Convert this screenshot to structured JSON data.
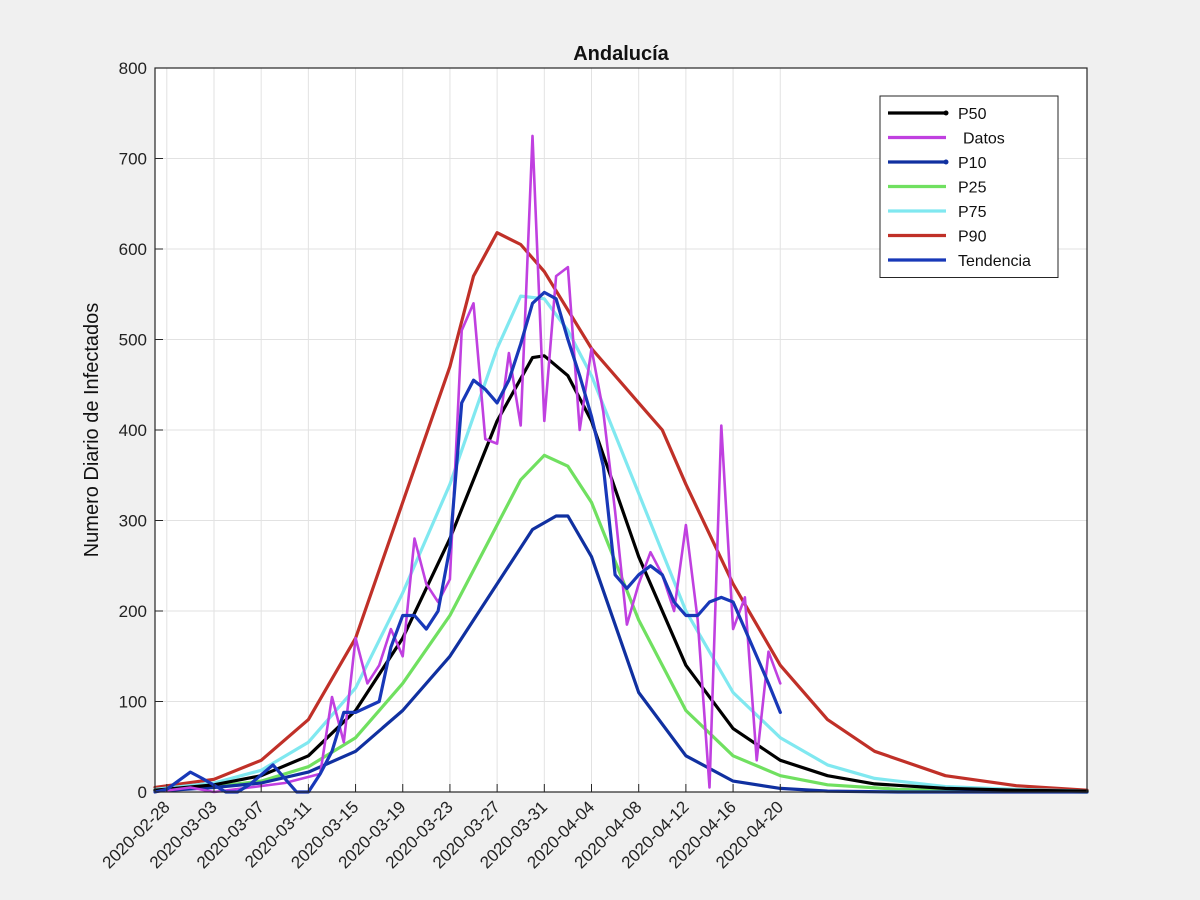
{
  "chart_data": {
    "type": "line",
    "title": "Andalucía",
    "xlabel": "",
    "ylabel": "Numero Diario de Infectados",
    "ylim": [
      0,
      800
    ],
    "yticks": [
      0,
      100,
      200,
      300,
      400,
      500,
      600,
      700,
      800
    ],
    "x_start": "2020-02-27",
    "x_end": "2020-05-16",
    "xtick_labels": [
      "2020-02-28",
      "2020-03-03",
      "2020-03-07",
      "2020-03-11",
      "2020-03-15",
      "2020-03-19",
      "2020-03-23",
      "2020-03-27",
      "2020-03-31",
      "2020-04-04",
      "2020-04-08",
      "2020-04-12",
      "2020-04-16",
      "2020-04-20"
    ],
    "grid": true,
    "legend_position": "top-right",
    "colors": {
      "P50": "#000000",
      "Datos": "#c040e0",
      "P10": "#1030a0",
      "P25": "#70e060",
      "P75": "#80e8f0",
      "P90": "#c03028",
      "Tendencia": "#1838b8"
    },
    "series": [
      {
        "name": "P50",
        "x": [
          "2020-02-27",
          "2020-03-03",
          "2020-03-07",
          "2020-03-11",
          "2020-03-15",
          "2020-03-19",
          "2020-03-23",
          "2020-03-27",
          "2020-03-30",
          "2020-03-31",
          "2020-04-02",
          "2020-04-04",
          "2020-04-08",
          "2020-04-12",
          "2020-04-16",
          "2020-04-20",
          "2020-04-24",
          "2020-04-28",
          "2020-05-04",
          "2020-05-10",
          "2020-05-16"
        ],
        "values": [
          2,
          8,
          18,
          40,
          90,
          170,
          280,
          410,
          480,
          482,
          460,
          410,
          260,
          140,
          70,
          35,
          18,
          9,
          4,
          2,
          1
        ]
      },
      {
        "name": "Datos",
        "x": [
          "2020-02-27",
          "2020-03-01",
          "2020-03-03",
          "2020-03-06",
          "2020-03-09",
          "2020-03-12",
          "2020-03-13",
          "2020-03-14",
          "2020-03-15",
          "2020-03-16",
          "2020-03-17",
          "2020-03-18",
          "2020-03-19",
          "2020-03-20",
          "2020-03-21",
          "2020-03-22",
          "2020-03-23",
          "2020-03-24",
          "2020-03-25",
          "2020-03-26",
          "2020-03-27",
          "2020-03-28",
          "2020-03-29",
          "2020-03-30",
          "2020-03-31",
          "2020-04-01",
          "2020-04-02",
          "2020-04-03",
          "2020-04-04",
          "2020-04-05",
          "2020-04-06",
          "2020-04-07",
          "2020-04-08",
          "2020-04-09",
          "2020-04-10",
          "2020-04-11",
          "2020-04-12",
          "2020-04-13",
          "2020-04-14",
          "2020-04-15",
          "2020-04-16",
          "2020-04-17",
          "2020-04-18",
          "2020-04-19",
          "2020-04-20"
        ],
        "values": [
          0,
          5,
          0,
          5,
          10,
          20,
          105,
          55,
          170,
          120,
          140,
          180,
          150,
          280,
          230,
          210,
          235,
          510,
          540,
          390,
          385,
          485,
          405,
          725,
          410,
          570,
          580,
          400,
          490,
          420,
          310,
          185,
          230,
          265,
          240,
          200,
          295,
          190,
          5,
          405,
          180,
          215,
          35,
          155,
          120
        ]
      },
      {
        "name": "P10",
        "x": [
          "2020-02-27",
          "2020-03-03",
          "2020-03-07",
          "2020-03-11",
          "2020-03-15",
          "2020-03-19",
          "2020-03-23",
          "2020-03-27",
          "2020-03-30",
          "2020-04-01",
          "2020-04-02",
          "2020-04-04",
          "2020-04-08",
          "2020-04-12",
          "2020-04-16",
          "2020-04-20",
          "2020-04-24",
          "2020-04-30",
          "2020-05-06",
          "2020-05-16"
        ],
        "values": [
          1,
          5,
          10,
          22,
          45,
          90,
          150,
          230,
          290,
          305,
          305,
          260,
          110,
          40,
          12,
          4,
          1,
          0,
          0,
          0
        ]
      },
      {
        "name": "P25",
        "x": [
          "2020-02-27",
          "2020-03-03",
          "2020-03-07",
          "2020-03-11",
          "2020-03-15",
          "2020-03-19",
          "2020-03-23",
          "2020-03-27",
          "2020-03-29",
          "2020-03-31",
          "2020-04-02",
          "2020-04-04",
          "2020-04-08",
          "2020-04-12",
          "2020-04-16",
          "2020-04-20",
          "2020-04-24",
          "2020-04-30",
          "2020-05-06",
          "2020-05-16"
        ],
        "values": [
          1,
          6,
          12,
          28,
          60,
          120,
          195,
          295,
          345,
          372,
          360,
          320,
          190,
          90,
          40,
          18,
          8,
          3,
          1,
          0
        ]
      },
      {
        "name": "P75",
        "x": [
          "2020-02-27",
          "2020-03-03",
          "2020-03-07",
          "2020-03-11",
          "2020-03-15",
          "2020-03-19",
          "2020-03-23",
          "2020-03-27",
          "2020-03-29",
          "2020-03-31",
          "2020-04-02",
          "2020-04-04",
          "2020-04-08",
          "2020-04-12",
          "2020-04-16",
          "2020-04-20",
          "2020-04-24",
          "2020-04-28",
          "2020-05-04",
          "2020-05-10",
          "2020-05-16"
        ],
        "values": [
          3,
          10,
          24,
          55,
          115,
          220,
          340,
          490,
          548,
          545,
          510,
          460,
          330,
          200,
          110,
          60,
          30,
          15,
          6,
          3,
          1
        ]
      },
      {
        "name": "P90",
        "x": [
          "2020-02-27",
          "2020-03-03",
          "2020-03-07",
          "2020-03-11",
          "2020-03-15",
          "2020-03-19",
          "2020-03-23",
          "2020-03-25",
          "2020-03-27",
          "2020-03-29",
          "2020-03-31",
          "2020-04-04",
          "2020-04-08",
          "2020-04-10",
          "2020-04-12",
          "2020-04-16",
          "2020-04-20",
          "2020-04-24",
          "2020-04-28",
          "2020-05-04",
          "2020-05-10",
          "2020-05-16"
        ],
        "values": [
          5,
          14,
          35,
          80,
          170,
          320,
          470,
          570,
          618,
          605,
          575,
          490,
          430,
          400,
          340,
          230,
          140,
          80,
          45,
          18,
          7,
          2
        ]
      },
      {
        "name": "Tendencia",
        "x": [
          "2020-02-27",
          "2020-02-28",
          "2020-03-01",
          "2020-03-02",
          "2020-03-04",
          "2020-03-05",
          "2020-03-06",
          "2020-03-08",
          "2020-03-10",
          "2020-03-11",
          "2020-03-12",
          "2020-03-13",
          "2020-03-14",
          "2020-03-15",
          "2020-03-17",
          "2020-03-18",
          "2020-03-19",
          "2020-03-20",
          "2020-03-21",
          "2020-03-22",
          "2020-03-23",
          "2020-03-24",
          "2020-03-25",
          "2020-03-26",
          "2020-03-27",
          "2020-03-28",
          "2020-03-29",
          "2020-03-30",
          "2020-03-31",
          "2020-04-01",
          "2020-04-02",
          "2020-04-03",
          "2020-04-04",
          "2020-04-05",
          "2020-04-06",
          "2020-04-07",
          "2020-04-08",
          "2020-04-09",
          "2020-04-10",
          "2020-04-11",
          "2020-04-12",
          "2020-04-13",
          "2020-04-14",
          "2020-04-15",
          "2020-04-16",
          "2020-04-17",
          "2020-04-18",
          "2020-04-19",
          "2020-04-20"
        ],
        "values": [
          0,
          3,
          22,
          15,
          0,
          0,
          8,
          30,
          0,
          0,
          20,
          45,
          88,
          88,
          100,
          160,
          195,
          195,
          180,
          200,
          270,
          430,
          455,
          445,
          430,
          455,
          495,
          540,
          552,
          545,
          500,
          460,
          415,
          360,
          240,
          225,
          240,
          250,
          240,
          210,
          195,
          195,
          210,
          215,
          210,
          180,
          150,
          120,
          88
        ]
      }
    ]
  }
}
